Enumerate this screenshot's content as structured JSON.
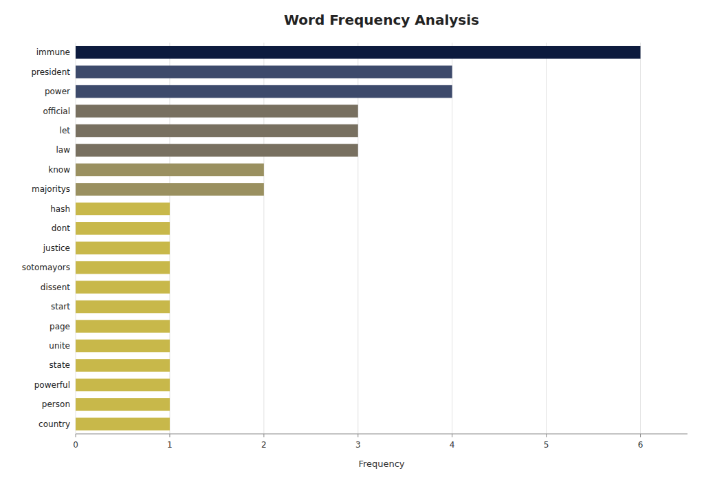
{
  "chart_data": {
    "type": "bar",
    "orientation": "horizontal",
    "title": "Word Frequency Analysis",
    "categories": [
      "immune",
      "president",
      "power",
      "official",
      "let",
      "law",
      "know",
      "majoritys",
      "hash",
      "dont",
      "justice",
      "sotomayors",
      "dissent",
      "start",
      "page",
      "unite",
      "state",
      "powerful",
      "person",
      "country"
    ],
    "values": [
      6,
      4,
      4,
      3,
      3,
      3,
      2,
      2,
      1,
      1,
      1,
      1,
      1,
      1,
      1,
      1,
      1,
      1,
      1,
      1
    ],
    "colors": [
      "#0d1b3e",
      "#3d4a6b",
      "#3d4a6b",
      "#787060",
      "#787060",
      "#787060",
      "#9a9060",
      "#9a9060",
      "#c8b84a",
      "#c8b84a",
      "#c8b84a",
      "#c8b84a",
      "#c8b84a",
      "#c8b84a",
      "#c8b84a",
      "#c8b84a",
      "#c8b84a",
      "#c8b84a",
      "#c8b84a",
      "#c8b84a"
    ],
    "xlabel": "Frequency",
    "xlim": [
      0,
      6.5
    ],
    "xticks": [
      0,
      1,
      2,
      3,
      4,
      5,
      6
    ],
    "grid": true
  }
}
